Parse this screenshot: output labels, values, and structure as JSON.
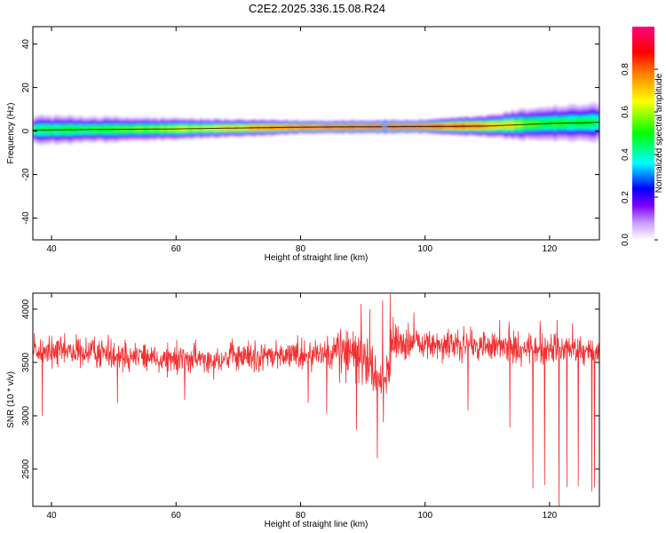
{
  "title": "C2E2.2025.336.15.08.R24",
  "chart_data": [
    {
      "type": "heatmap",
      "xlabel": "Height of straight line (km)",
      "ylabel": "Frequency (Hz)",
      "xlim": [
        37,
        128
      ],
      "ylim": [
        -50,
        48
      ],
      "xticks": [
        40,
        60,
        80,
        100,
        120
      ],
      "yticks": [
        -40,
        -20,
        0,
        20,
        40
      ],
      "grid": false,
      "colorbar": {
        "label": "Normalized spectral amplitude",
        "range": [
          0,
          1
        ],
        "ticks": [
          "0.0",
          "0.2",
          "0.4",
          "0.6",
          "0.8"
        ],
        "colors": [
          "#ffffff",
          "#7f00ff",
          "#0000ff",
          "#00ffff",
          "#00ff00",
          "#ffff00",
          "#ff7f00",
          "#ff0000",
          "#ff007f"
        ]
      },
      "band": {
        "center_line": [
          [
            37,
            0.5
          ],
          [
            60,
            1.0
          ],
          [
            80,
            1.8
          ],
          [
            93,
            2.0
          ],
          [
            100,
            2.1
          ],
          [
            110,
            2.3
          ],
          [
            120,
            3.5
          ],
          [
            128,
            4.0
          ]
        ],
        "half_width_hz": [
          [
            37,
            3.5
          ],
          [
            60,
            2.5
          ],
          [
            80,
            1.5
          ],
          [
            100,
            1.5
          ],
          [
            110,
            2.5
          ],
          [
            118,
            4.0
          ],
          [
            128,
            4.5
          ]
        ],
        "peak_amplitude": [
          [
            37,
            0.45
          ],
          [
            50,
            0.5
          ],
          [
            65,
            0.62
          ],
          [
            75,
            0.8
          ],
          [
            85,
            0.88
          ],
          [
            95,
            0.9
          ],
          [
            105,
            0.85
          ],
          [
            112,
            0.7
          ],
          [
            118,
            0.5
          ],
          [
            128,
            0.45
          ]
        ]
      }
    },
    {
      "type": "line",
      "xlabel": "Height of straight line (km)",
      "ylabel": "SNR (10 * v/v)",
      "xlim": [
        37,
        128
      ],
      "ylim": [
        2150,
        4150
      ],
      "xticks": [
        40,
        60,
        80,
        100,
        120
      ],
      "yticks": [
        2500,
        3000,
        3500,
        4000
      ],
      "grid": false,
      "color": "#f03030",
      "series": [
        {
          "baseline": [
            [
              37,
              3600
            ],
            [
              50,
              3590
            ],
            [
              60,
              3520
            ],
            [
              70,
              3550
            ],
            [
              80,
              3570
            ],
            [
              86,
              3620
            ],
            [
              90,
              3550
            ],
            [
              92,
              3420
            ],
            [
              93.5,
              3320
            ],
            [
              95,
              3700
            ],
            [
              100,
              3670
            ],
            [
              110,
              3650
            ],
            [
              120,
              3620
            ],
            [
              128,
              3600
            ]
          ],
          "noise_amplitude": 160,
          "dips": [
            [
              38.5,
              3000
            ],
            [
              50.6,
              3120
            ],
            [
              61.4,
              3150
            ],
            [
              81.2,
              3120
            ],
            [
              84.2,
              3020
            ],
            [
              89.0,
              2870
            ],
            [
              92.3,
              2600
            ],
            [
              93.3,
              2940
            ],
            [
              106.9,
              3050
            ],
            [
              113.6,
              2890
            ],
            [
              117.3,
              2320
            ],
            [
              119.2,
              2350
            ],
            [
              121.5,
              2150
            ],
            [
              122.8,
              2330
            ],
            [
              124.6,
              2340
            ],
            [
              126.8,
              2290
            ],
            [
              127.2,
              2330
            ]
          ],
          "spikes": [
            [
              89.7,
              4050
            ],
            [
              91.1,
              4000
            ],
            [
              93.2,
              4080
            ],
            [
              94.4,
              4140
            ],
            [
              98.2,
              3970
            ],
            [
              112.0,
              3900
            ],
            [
              113.5,
              3880
            ],
            [
              118.5,
              3890
            ],
            [
              121.2,
              3900
            ],
            [
              123.7,
              3870
            ]
          ]
        }
      ]
    }
  ]
}
